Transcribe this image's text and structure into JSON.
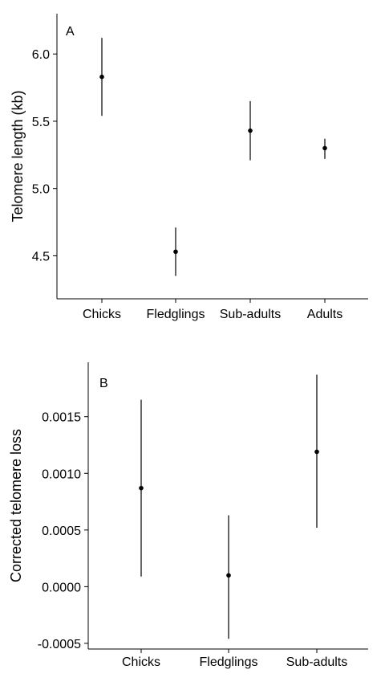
{
  "chart_data": [
    {
      "type": "scatter",
      "panel_label": "A",
      "title": "",
      "xlabel": "",
      "ylabel": "Telomere length (kb)",
      "categories": [
        "Chicks",
        "Fledglings",
        "Sub-adults",
        "Adults"
      ],
      "values": [
        5.83,
        4.53,
        5.43,
        5.3
      ],
      "lower": [
        5.54,
        4.35,
        5.21,
        5.22
      ],
      "upper": [
        6.12,
        4.71,
        5.65,
        5.37
      ],
      "ylim": [
        4.18,
        6.3
      ],
      "yticks": [
        4.5,
        5.0,
        5.5,
        6.0
      ],
      "ytick_labels": [
        "4.5",
        "5.0",
        "5.5",
        "6.0"
      ],
      "grid": false
    },
    {
      "type": "scatter",
      "panel_label": "B",
      "title": "",
      "xlabel": "",
      "ylabel": "Corrected telomere loss",
      "categories": [
        "Chicks",
        "Fledglings",
        "Sub-adults"
      ],
      "values": [
        0.00087,
        0.0001,
        0.00119
      ],
      "lower": [
        9e-05,
        -0.00046,
        0.00052
      ],
      "upper": [
        0.00165,
        0.00063,
        0.00187
      ],
      "ylim": [
        -0.00055,
        0.00198
      ],
      "yticks": [
        -0.0005,
        0.0,
        0.0005,
        0.001,
        0.0015
      ],
      "ytick_labels": [
        "-0.0005",
        "0.0000",
        "0.0005",
        "0.0010",
        "0.0015"
      ],
      "grid": false
    }
  ]
}
